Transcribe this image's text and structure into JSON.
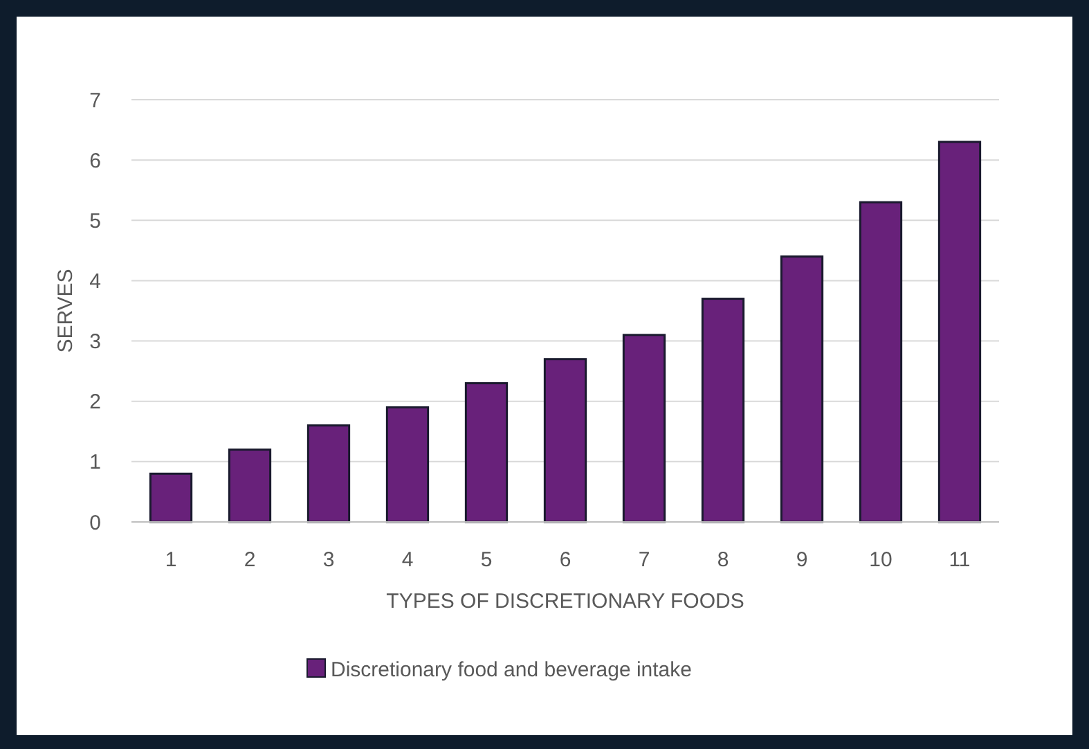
{
  "chart_data": {
    "type": "bar",
    "xlabel": "TYPES OF DISCRETIONARY FOODS",
    "ylabel": "SERVES",
    "categories": [
      "1",
      "2",
      "3",
      "4",
      "5",
      "6",
      "7",
      "8",
      "9",
      "10",
      "11"
    ],
    "series": [
      {
        "name": "Discretionary food and beverage intake",
        "color": "#68217a",
        "values": [
          0.8,
          1.2,
          1.6,
          1.9,
          2.3,
          2.7,
          3.1,
          3.7,
          4.4,
          5.3,
          6.3
        ]
      }
    ],
    "ylim": [
      0,
      7
    ],
    "yticks": [
      0,
      1,
      2,
      3,
      4,
      5,
      6,
      7
    ],
    "grid": "y",
    "legend": "bottom"
  }
}
